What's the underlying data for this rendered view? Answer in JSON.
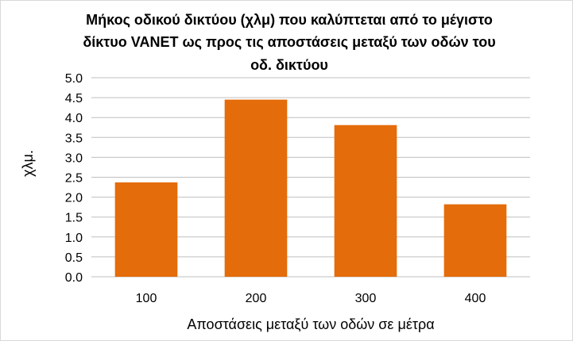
{
  "chart_data": {
    "type": "bar",
    "title_lines": [
      "Μήκος οδικού δικτύου (χλμ) που καλύπτεται από το μέγιστο",
      "δίκτυο VANET ως προς τις αποστάσεις μεταξύ των οδών του",
      "οδ. δικτύου"
    ],
    "xlabel": "Αποστάσεις μεταξύ των οδών σε μέτρα",
    "ylabel": "χλμ.",
    "categories": [
      "100",
      "200",
      "300",
      "400"
    ],
    "values": [
      2.37,
      4.45,
      3.81,
      1.82
    ],
    "ylim": [
      0,
      5
    ],
    "yticks": [
      "0.0",
      "0.5",
      "1.0",
      "1.5",
      "2.0",
      "2.5",
      "3.0",
      "3.5",
      "4.0",
      "4.5",
      "5.0"
    ],
    "grid": true,
    "legend": "none",
    "bar_color": "#E46C0A"
  }
}
